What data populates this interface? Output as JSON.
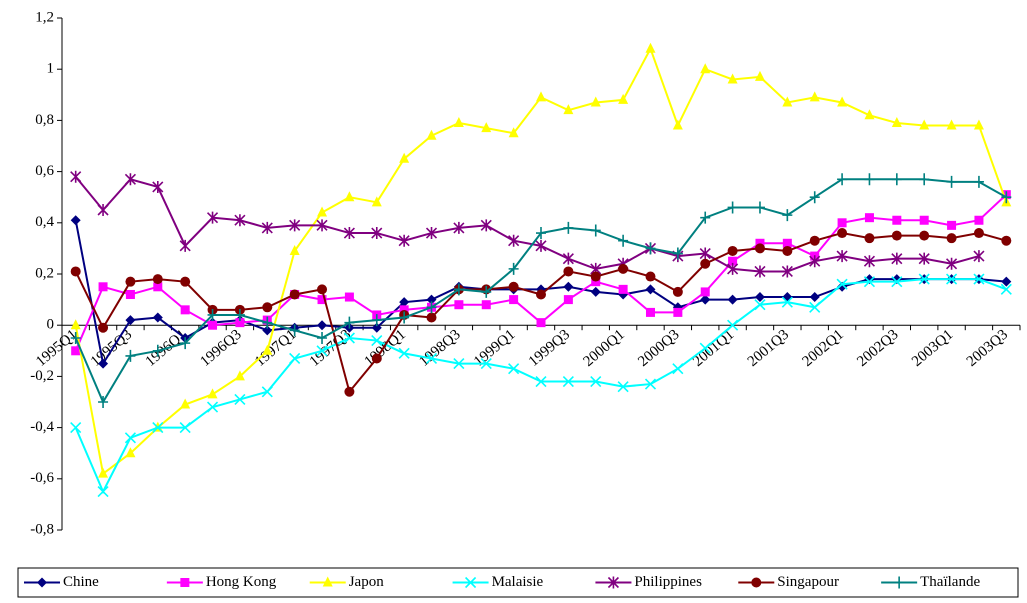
{
  "chart_data": {
    "type": "line",
    "categories": [
      "1995Q1",
      null,
      "1995Q3",
      null,
      "1996Q1",
      null,
      "1996Q3",
      null,
      "1997Q1",
      null,
      "1997Q3",
      null,
      "1998Q1",
      null,
      "1998Q3",
      null,
      "1999Q1",
      null,
      "1999Q3",
      null,
      "2000Q1",
      null,
      "2000Q3",
      null,
      "2001Q1",
      null,
      "2001Q3",
      null,
      "2002Q1",
      null,
      "2002Q3",
      null,
      "2003Q1",
      null,
      "2003Q3"
    ],
    "series": [
      {
        "name": "Chine",
        "color": "#000080",
        "marker": "diamond",
        "values": [
          0.41,
          -0.15,
          0.02,
          0.03,
          -0.05,
          0.01,
          0.02,
          -0.02,
          -0.01,
          0.0,
          -0.01,
          -0.01,
          0.09,
          0.1,
          0.15,
          0.14,
          0.14,
          0.14,
          0.15,
          0.13,
          0.12,
          0.14,
          0.07,
          0.1,
          0.1,
          0.11,
          0.11,
          0.11,
          0.15,
          0.18,
          0.18,
          0.18,
          0.18,
          0.18,
          0.17
        ]
      },
      {
        "name": "Hong Kong",
        "color": "#ff00ff",
        "marker": "square",
        "values": [
          -0.1,
          0.15,
          0.12,
          0.15,
          0.06,
          0.0,
          0.01,
          0.02,
          0.12,
          0.1,
          0.11,
          0.04,
          0.06,
          0.07,
          0.08,
          0.08,
          0.1,
          0.01,
          0.1,
          0.17,
          0.14,
          0.05,
          0.05,
          0.13,
          0.25,
          0.32,
          0.32,
          0.27,
          0.4,
          0.42,
          0.41,
          0.41,
          0.39,
          0.41,
          0.51
        ]
      },
      {
        "name": "Japon",
        "color": "#ffff00",
        "marker": "triangle",
        "values": [
          0.0,
          -0.58,
          -0.5,
          -0.4,
          -0.31,
          -0.27,
          -0.2,
          -0.1,
          0.29,
          0.44,
          0.5,
          0.48,
          0.65,
          0.74,
          0.79,
          0.77,
          0.75,
          0.89,
          0.84,
          0.87,
          0.88,
          1.08,
          0.78,
          1.0,
          0.96,
          0.97,
          0.87,
          0.89,
          0.87,
          0.82,
          0.79,
          0.78,
          0.78,
          0.78,
          0.48
        ]
      },
      {
        "name": "Malaisie",
        "color": "#00ffff",
        "marker": "x",
        "values": [
          -0.4,
          -0.65,
          -0.44,
          -0.4,
          -0.4,
          -0.32,
          -0.29,
          -0.26,
          -0.13,
          -0.1,
          -0.05,
          -0.06,
          -0.11,
          -0.13,
          -0.15,
          -0.15,
          -0.17,
          -0.22,
          -0.22,
          -0.22,
          -0.24,
          -0.23,
          -0.17,
          -0.09,
          0.0,
          0.08,
          0.09,
          0.07,
          0.16,
          0.17,
          0.17,
          0.18,
          0.18,
          0.18,
          0.14
        ]
      },
      {
        "name": "Philippines",
        "color": "#800080",
        "marker": "star",
        "values": [
          0.58,
          0.45,
          0.57,
          0.54,
          0.31,
          0.42,
          0.41,
          0.38,
          0.39,
          0.39,
          0.36,
          0.36,
          0.33,
          0.36,
          0.38,
          0.39,
          0.33,
          0.31,
          0.26,
          0.22,
          0.24,
          0.3,
          0.27,
          0.28,
          0.22,
          0.21,
          0.21,
          0.25,
          0.27,
          0.25,
          0.26,
          0.26,
          0.24,
          0.27,
          null
        ]
      },
      {
        "name": "Singapour",
        "color": "#800000",
        "marker": "circle",
        "values": [
          0.21,
          -0.01,
          0.17,
          0.18,
          0.17,
          0.06,
          0.06,
          0.07,
          0.12,
          0.14,
          -0.26,
          -0.13,
          0.04,
          0.03,
          0.14,
          0.14,
          0.15,
          0.12,
          0.21,
          0.19,
          0.22,
          0.19,
          0.13,
          0.24,
          0.29,
          0.3,
          0.29,
          0.33,
          0.36,
          0.34,
          0.35,
          0.35,
          0.34,
          0.36,
          0.33
        ]
      },
      {
        "name": "Thaïlande",
        "color": "#008080",
        "marker": "plus",
        "values": [
          -0.05,
          -0.3,
          -0.12,
          -0.1,
          -0.07,
          0.04,
          0.04,
          0.01,
          -0.02,
          -0.05,
          0.01,
          0.02,
          0.03,
          0.07,
          0.14,
          0.13,
          0.22,
          0.36,
          0.38,
          0.37,
          0.33,
          0.3,
          0.28,
          0.42,
          0.46,
          0.46,
          0.43,
          0.5,
          0.57,
          0.57,
          0.57,
          0.57,
          0.56,
          0.56,
          0.5
        ]
      }
    ],
    "ylim": [
      -0.8,
      1.2
    ],
    "yticks": [
      {
        "value": -0.8,
        "label": "-0,8"
      },
      {
        "value": -0.6,
        "label": "-0,6"
      },
      {
        "value": -0.4,
        "label": "-0,4"
      },
      {
        "value": -0.2,
        "label": "-0,2"
      },
      0,
      {
        "value": 0.2,
        "label": "0,2"
      },
      {
        "value": 0.4,
        "label": "0,4"
      },
      {
        "value": 0.6,
        "label": "0,6"
      },
      {
        "value": 0.8,
        "label": "0,8"
      },
      1,
      {
        "value": 1.2,
        "label": "1,2"
      }
    ],
    "grid": false,
    "legend": "bottom"
  }
}
